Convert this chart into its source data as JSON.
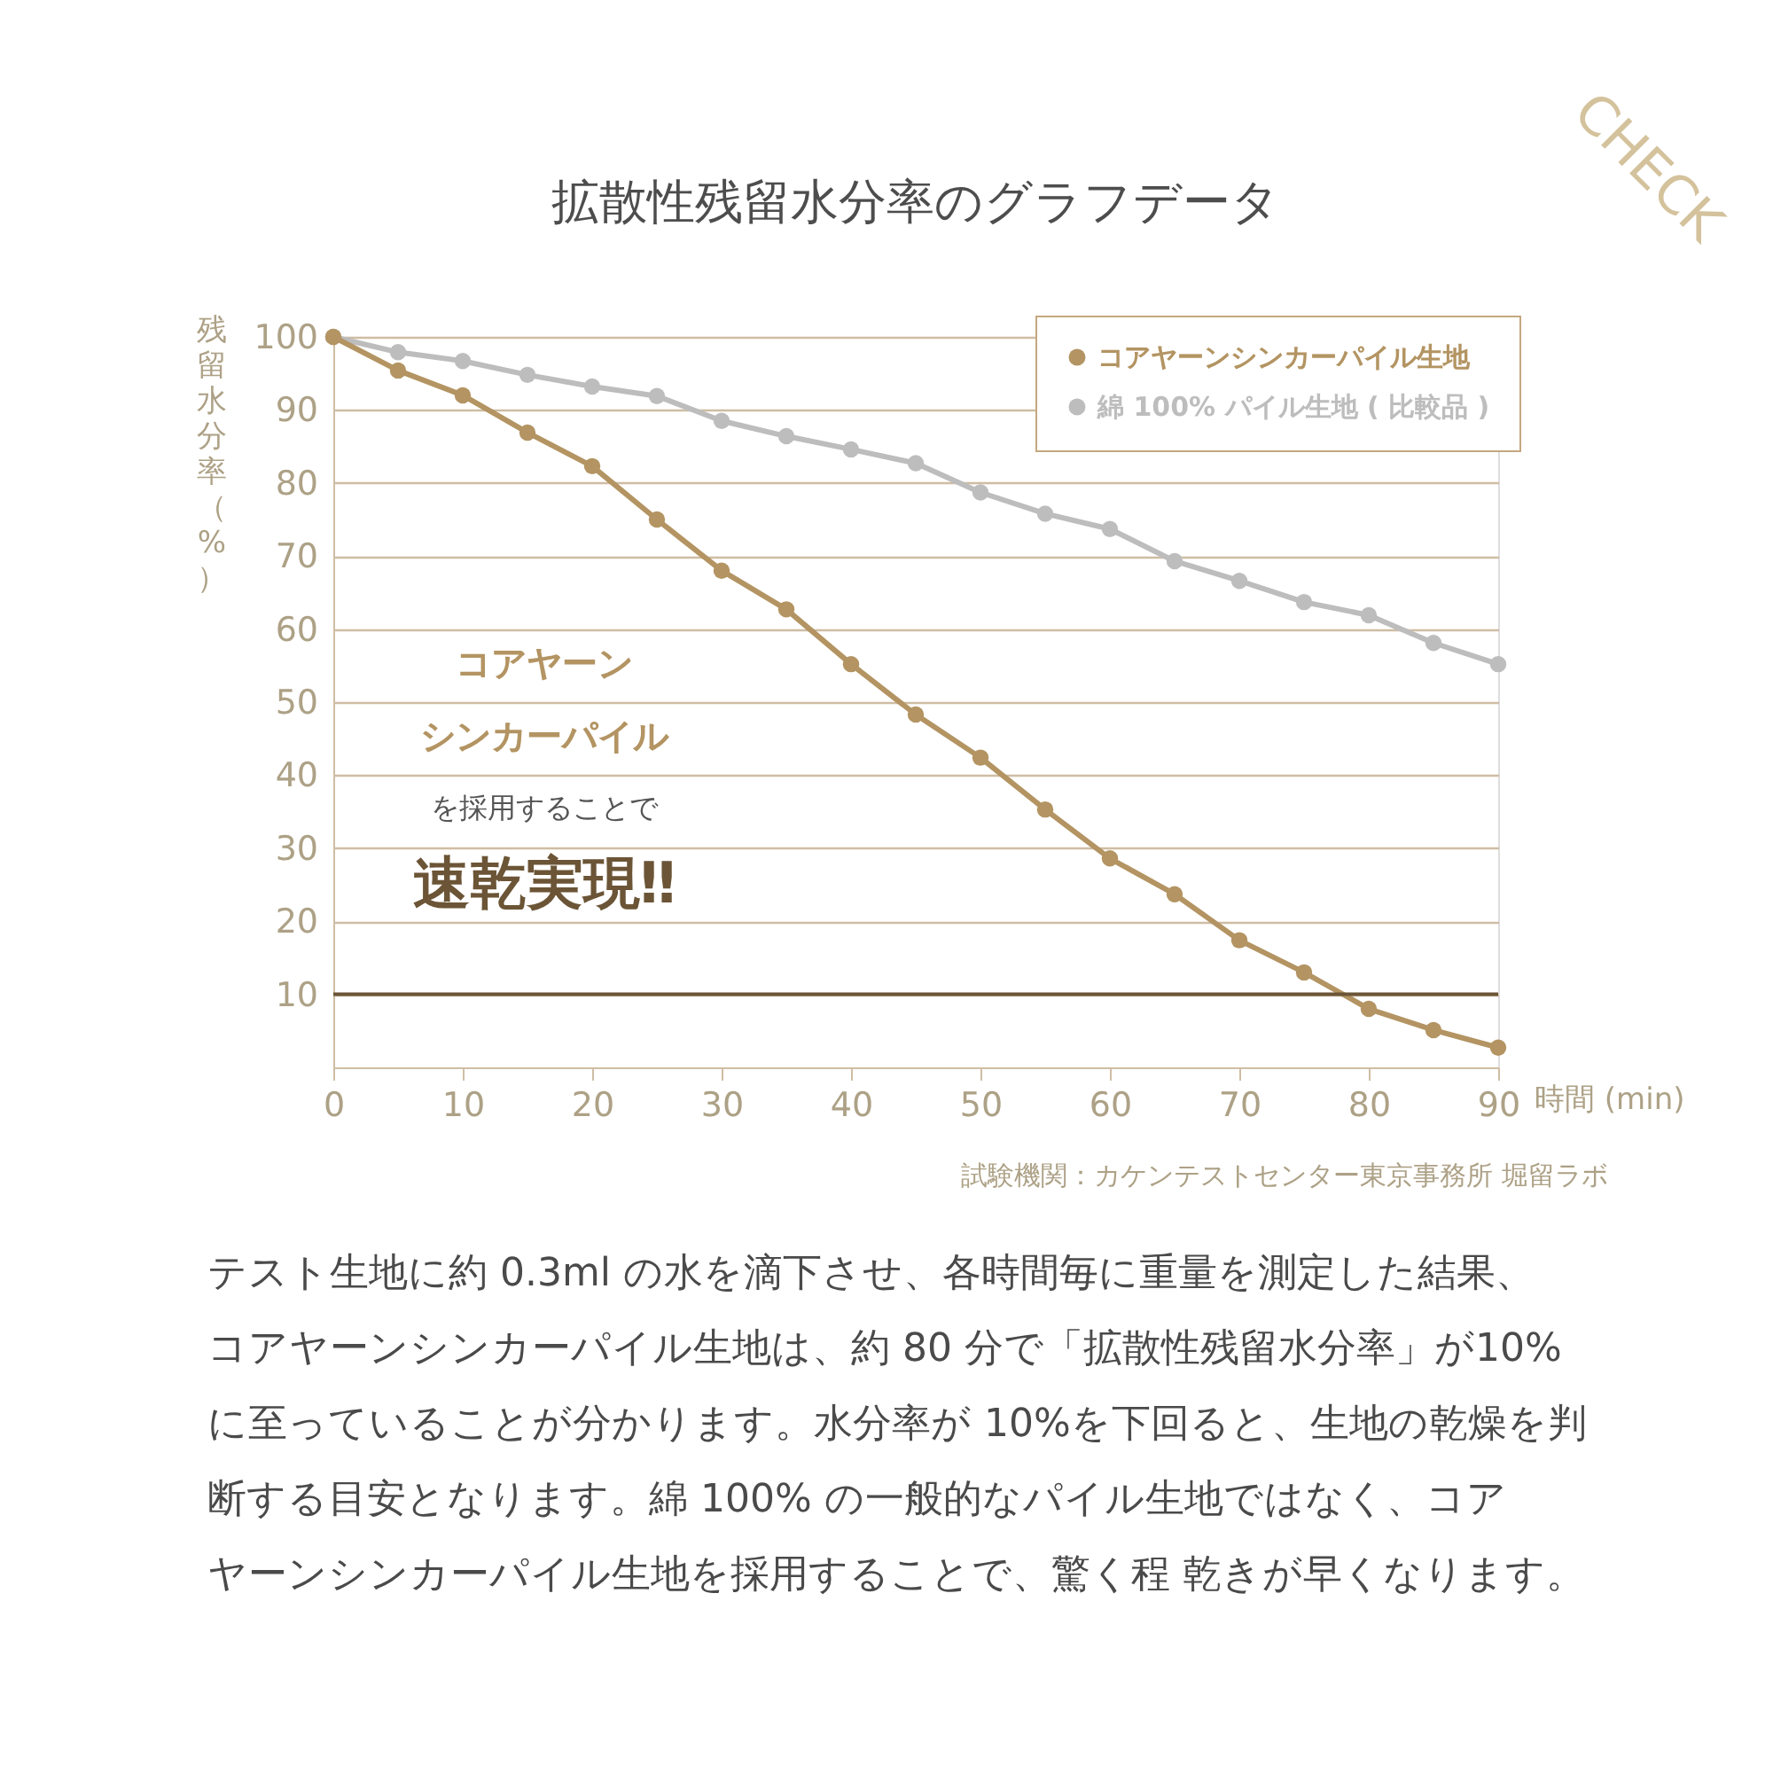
{
  "chart_data": {
    "type": "line",
    "title": "拡散性残留水分率のグラフデータ",
    "xlabel": "時間 (min)",
    "ylabel": "残留水分率（%）",
    "x": [
      0,
      5,
      10,
      15,
      20,
      25,
      30,
      35,
      40,
      45,
      50,
      55,
      60,
      65,
      70,
      75,
      80,
      85,
      90
    ],
    "series": [
      {
        "name": "コアヤーンシンカーパイル生地",
        "color": "#b39462",
        "values": [
          100,
          95.4,
          92.0,
          86.9,
          82.3,
          75.0,
          68.0,
          62.7,
          55.2,
          48.3,
          42.4,
          35.3,
          28.6,
          23.7,
          17.4,
          13.0,
          8.0,
          5.1,
          2.7
        ]
      },
      {
        "name": "綿 100% パイル生地 ( 比較品 )",
        "color": "#bdbdbd",
        "values": [
          100,
          97.9,
          96.7,
          94.8,
          93.2,
          91.9,
          88.5,
          86.4,
          84.6,
          82.7,
          78.7,
          75.8,
          73.7,
          69.3,
          66.6,
          63.7,
          61.9,
          58.1,
          55.2
        ]
      }
    ],
    "xlim": [
      0,
      90
    ],
    "xticks": [
      0,
      10,
      20,
      30,
      40,
      50,
      60,
      70,
      80,
      90
    ],
    "ylim": [
      0,
      100
    ],
    "yticks": [
      10,
      20,
      30,
      40,
      50,
      60,
      70,
      80,
      90,
      100
    ],
    "ref_lines": [
      {
        "axis": "y",
        "value": 10,
        "color": "#6b5536"
      }
    ],
    "grid": "y",
    "legend": "top right",
    "marker": "circle",
    "line_style": "solid",
    "annotations": [
      "試験機関：カケンテストセンター東京事務所 堀留ラボ",
      "コアヤーン",
      "シンカーパイル",
      "を採用することで",
      "速乾実現‼",
      "テスト生地に約 0.3ml の水を滴下させ、各時間毎に重量を測定した結果、",
      "コアヤーンシンカーパイル生地は、約 80 分で「拡散性残留水分率」が10%",
      "に至っていることが分かります。水分率が 10%を下回ると、生地の乾燥を判",
      "断する目安となります。綿 100% の一般的なパイル生地ではなく、コア",
      "ヤーンシンカーパイル生地を採用することで、驚く程 乾きが早くなります。",
      "CHECK"
    ]
  }
}
